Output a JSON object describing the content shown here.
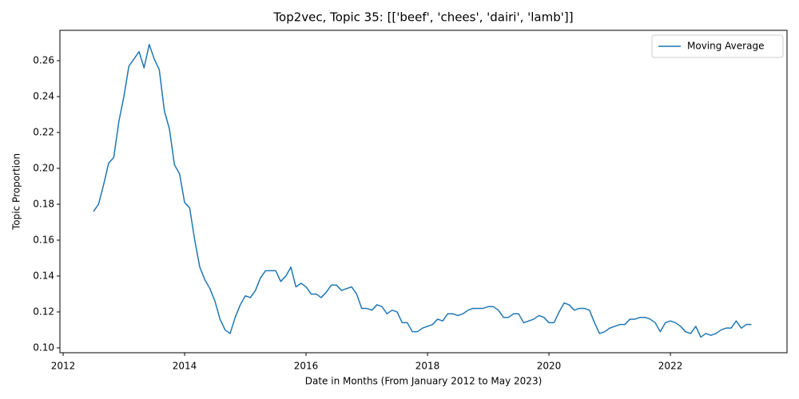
{
  "chart_data": {
    "type": "line",
    "title": "Top2vec, Topic 35: [['beef', 'chees', 'dairi', 'lamb']]",
    "x_label": "Date in Months (From January 2012 to May 2023)",
    "y_label": "Topic Proportion",
    "x": [
      2012.5,
      2012.583,
      2012.667,
      2012.75,
      2012.833,
      2012.917,
      2013.0,
      2013.083,
      2013.167,
      2013.25,
      2013.333,
      2013.417,
      2013.5,
      2013.583,
      2013.667,
      2013.75,
      2013.833,
      2013.917,
      2014.0,
      2014.083,
      2014.167,
      2014.25,
      2014.333,
      2014.417,
      2014.5,
      2014.583,
      2014.667,
      2014.75,
      2014.833,
      2014.917,
      2015.0,
      2015.083,
      2015.167,
      2015.25,
      2015.333,
      2015.417,
      2015.5,
      2015.583,
      2015.667,
      2015.75,
      2015.833,
      2015.917,
      2016.0,
      2016.083,
      2016.167,
      2016.25,
      2016.333,
      2016.417,
      2016.5,
      2016.583,
      2016.667,
      2016.75,
      2016.833,
      2016.917,
      2017.0,
      2017.083,
      2017.167,
      2017.25,
      2017.333,
      2017.417,
      2017.5,
      2017.583,
      2017.667,
      2017.75,
      2017.833,
      2017.917,
      2018.0,
      2018.083,
      2018.167,
      2018.25,
      2018.333,
      2018.417,
      2018.5,
      2018.583,
      2018.667,
      2018.75,
      2018.833,
      2018.917,
      2019.0,
      2019.083,
      2019.167,
      2019.25,
      2019.333,
      2019.417,
      2019.5,
      2019.583,
      2019.667,
      2019.75,
      2019.833,
      2019.917,
      2020.0,
      2020.083,
      2020.167,
      2020.25,
      2020.333,
      2020.417,
      2020.5,
      2020.583,
      2020.667,
      2020.75,
      2020.833,
      2020.917,
      2021.0,
      2021.083,
      2021.167,
      2021.25,
      2021.333,
      2021.417,
      2021.5,
      2021.583,
      2021.667,
      2021.75,
      2021.833,
      2021.917,
      2022.0,
      2022.083,
      2022.167,
      2022.25,
      2022.333,
      2022.417,
      2022.5,
      2022.583,
      2022.667,
      2022.75,
      2022.833,
      2022.917,
      2023.0,
      2023.083,
      2023.167,
      2023.25,
      2023.333
    ],
    "series": [
      {
        "name": "Moving Average",
        "color": "#1f77b4",
        "values": [
          0.176,
          0.18,
          0.191,
          0.203,
          0.206,
          0.226,
          0.24,
          0.257,
          0.261,
          0.265,
          0.256,
          0.269,
          0.261,
          0.255,
          0.232,
          0.222,
          0.202,
          0.197,
          0.181,
          0.178,
          0.16,
          0.145,
          0.138,
          0.133,
          0.126,
          0.116,
          0.11,
          0.108,
          0.117,
          0.124,
          0.129,
          0.128,
          0.132,
          0.139,
          0.143,
          0.143,
          0.143,
          0.137,
          0.14,
          0.145,
          0.134,
          0.136,
          0.134,
          0.13,
          0.13,
          0.128,
          0.131,
          0.135,
          0.135,
          0.132,
          0.133,
          0.134,
          0.13,
          0.122,
          0.122,
          0.121,
          0.124,
          0.123,
          0.119,
          0.121,
          0.12,
          0.114,
          0.114,
          0.109,
          0.109,
          0.111,
          0.112,
          0.113,
          0.116,
          0.115,
          0.119,
          0.119,
          0.118,
          0.119,
          0.121,
          0.122,
          0.122,
          0.122,
          0.123,
          0.123,
          0.121,
          0.117,
          0.117,
          0.119,
          0.119,
          0.114,
          0.115,
          0.116,
          0.118,
          0.117,
          0.114,
          0.114,
          0.12,
          0.125,
          0.124,
          0.121,
          0.122,
          0.122,
          0.121,
          0.114,
          0.108,
          0.109,
          0.111,
          0.112,
          0.113,
          0.113,
          0.116,
          0.116,
          0.117,
          0.117,
          0.116,
          0.114,
          0.109,
          0.114,
          0.115,
          0.114,
          0.112,
          0.109,
          0.108,
          0.112,
          0.106,
          0.108,
          0.107,
          0.108,
          0.11,
          0.111,
          0.111,
          0.115,
          0.111,
          0.113,
          0.113
        ]
      }
    ],
    "xlim": [
      2011.947,
      2023.92
    ],
    "xticks": [
      2012,
      2014,
      2016,
      2018,
      2020,
      2022
    ],
    "ylim": [
      0.0973,
      0.2769
    ],
    "yticks": [
      {
        "value": 0.1,
        "label": "0.10"
      },
      0.12,
      0.14,
      0.16,
      0.18,
      {
        "value": 0.2,
        "label": "0.20"
      },
      0.22,
      0.24,
      0.26
    ],
    "grid": false,
    "legend": "upper right"
  }
}
